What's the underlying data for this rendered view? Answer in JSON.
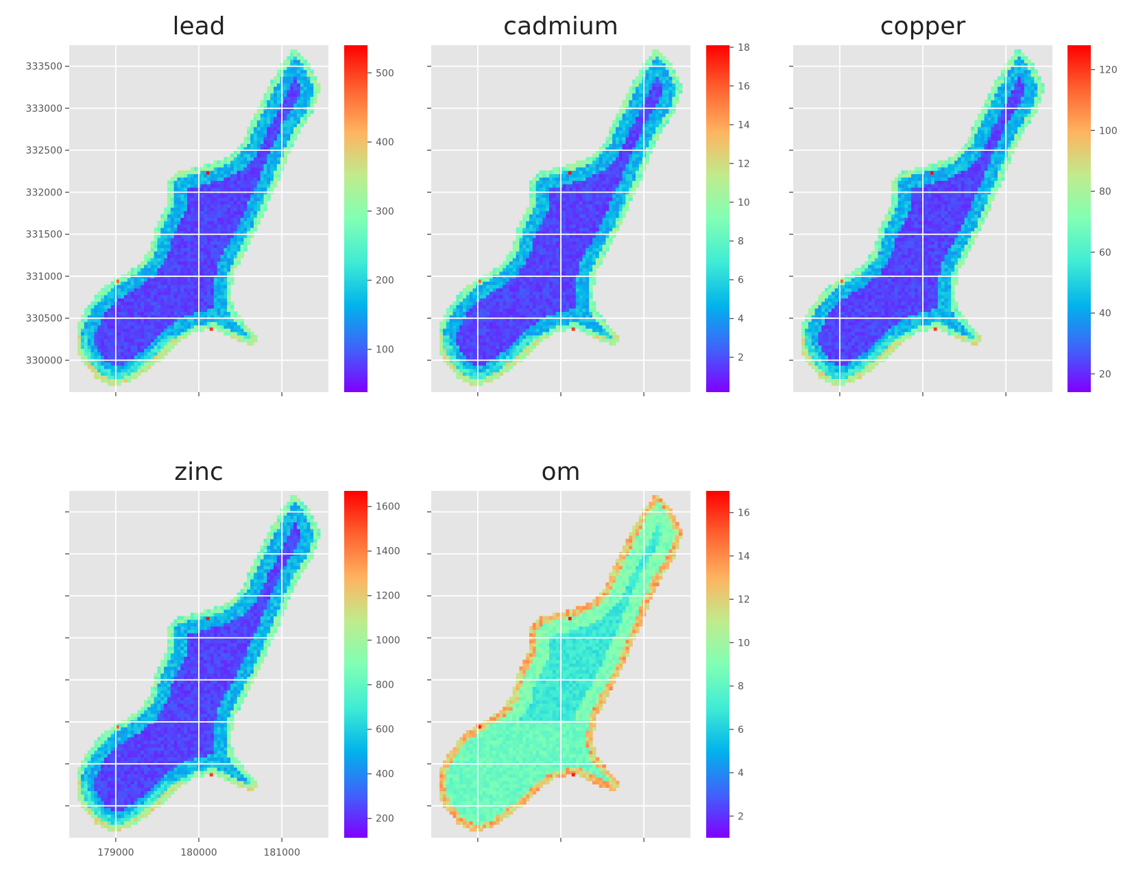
{
  "chart_data": [
    {
      "type": "heatmap",
      "title": "lead",
      "xlim": [
        178440,
        181560
      ],
      "ylim": [
        329620,
        333750
      ],
      "x_ticks": [
        179000,
        180000,
        181000
      ],
      "y_ticks": [
        330000,
        330500,
        331000,
        331500,
        332000,
        332500,
        333000,
        333500
      ],
      "x_tick_labels": [],
      "y_tick_labels": [
        "330000",
        "330500",
        "331000",
        "331500",
        "332000",
        "332500",
        "333000",
        "333500"
      ],
      "grid": true,
      "colormap": "rainbow",
      "value_range": [
        38,
        540
      ],
      "colorbar_ticks": [
        100,
        200,
        300,
        400,
        500
      ],
      "colorbar_tick_labels": [
        "100",
        "200",
        "300",
        "400",
        "500"
      ]
    },
    {
      "type": "heatmap",
      "title": "cadmium",
      "xlim": [
        178440,
        181560
      ],
      "ylim": [
        329620,
        333750
      ],
      "x_ticks": [
        179000,
        180000,
        181000
      ],
      "y_ticks": [
        330000,
        330500,
        331000,
        331500,
        332000,
        332500,
        333000,
        333500
      ],
      "x_tick_labels": [],
      "y_tick_labels": [],
      "grid": true,
      "colormap": "rainbow",
      "value_range": [
        0.2,
        18.1
      ],
      "colorbar_ticks": [
        2,
        4,
        6,
        8,
        10,
        12,
        14,
        16,
        18
      ],
      "colorbar_tick_labels": [
        "2",
        "4",
        "6",
        "8",
        "10",
        "12",
        "14",
        "16",
        "18"
      ]
    },
    {
      "type": "heatmap",
      "title": "copper",
      "xlim": [
        178440,
        181560
      ],
      "ylim": [
        329620,
        333750
      ],
      "x_ticks": [
        179000,
        180000,
        181000
      ],
      "y_ticks": [
        330000,
        330500,
        331000,
        331500,
        332000,
        332500,
        333000,
        333500
      ],
      "x_tick_labels": [],
      "y_tick_labels": [],
      "grid": true,
      "colormap": "rainbow",
      "value_range": [
        14,
        128
      ],
      "colorbar_ticks": [
        20,
        40,
        60,
        80,
        100,
        120
      ],
      "colorbar_tick_labels": [
        "20",
        "40",
        "60",
        "80",
        "100",
        "120"
      ]
    },
    {
      "type": "heatmap",
      "title": "zinc",
      "xlim": [
        178440,
        181560
      ],
      "ylim": [
        329620,
        333750
      ],
      "x_ticks": [
        179000,
        180000,
        181000
      ],
      "y_ticks": [
        330000,
        330500,
        331000,
        331500,
        332000,
        332500,
        333000,
        333500
      ],
      "x_tick_labels": [
        "179000",
        "180000",
        "181000"
      ],
      "y_tick_labels": [],
      "grid": true,
      "colormap": "rainbow",
      "value_range": [
        113,
        1670
      ],
      "colorbar_ticks": [
        200,
        400,
        600,
        800,
        1000,
        1200,
        1400,
        1600
      ],
      "colorbar_tick_labels": [
        "200",
        "400",
        "600",
        "800",
        "1000",
        "1200",
        "1400",
        "1600"
      ]
    },
    {
      "type": "heatmap",
      "title": "om",
      "xlim": [
        178440,
        181560
      ],
      "ylim": [
        329620,
        333750
      ],
      "x_ticks": [
        179000,
        180000,
        181000
      ],
      "y_ticks": [
        330000,
        330500,
        331000,
        331500,
        332000,
        332500,
        333000,
        333500
      ],
      "x_tick_labels": [],
      "y_tick_labels": [],
      "grid": true,
      "colormap": "rainbow",
      "value_range": [
        1,
        17
      ],
      "colorbar_ticks": [
        2,
        4,
        6,
        8,
        10,
        12,
        14,
        16
      ],
      "colorbar_tick_labels": [
        "2",
        "4",
        "6",
        "8",
        "10",
        "12",
        "14",
        "16"
      ]
    }
  ],
  "colors": {
    "plot_background": "#e5e5e5",
    "grid": "#ffffff",
    "tick": "#555555",
    "title": "#222222",
    "colormap_stops": [
      "#8000ff",
      "#4062fa",
      "#01b3eb",
      "#40ecd4",
      "#81ffb4",
      "#c0eb8d",
      "#ffb360",
      "#ff6230",
      "#ff0000"
    ]
  }
}
